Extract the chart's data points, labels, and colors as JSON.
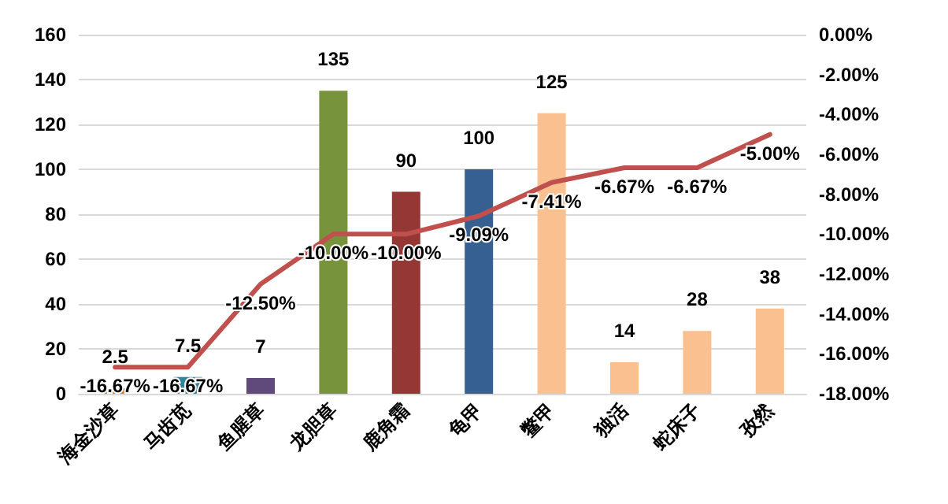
{
  "chart_data": {
    "type": "bar",
    "categories": [
      "海金沙草",
      "马齿苋",
      "鱼腥草",
      "龙胆草",
      "鹿角霜",
      "龟甲",
      "鳖甲",
      "独活",
      "蛇床子",
      "孜然"
    ],
    "series": [
      {
        "colors": [
          "#e46c0a",
          "#31849b",
          "#604a7b",
          "#77933c",
          "#953735",
          "#376092",
          "#fac090",
          "#fac090",
          "#fac090",
          "#fac090"
        ],
        "values": [
          2.5,
          7.5,
          7,
          135,
          90,
          100,
          125,
          14,
          28,
          38
        ],
        "value_labels": [
          "2.5",
          "7.5",
          "7",
          "135",
          "90",
          "100",
          "125",
          "14",
          "28",
          "38"
        ]
      },
      {
        "type": "line",
        "axis": "y2",
        "color": "#c0504d",
        "values": [
          -16.67,
          -16.67,
          -12.5,
          -10,
          -10,
          -9.09,
          -7.41,
          -6.67,
          -6.67,
          -5
        ],
        "value_labels": [
          "-16.67%",
          "-16.67%",
          "-12.50%",
          "-10.00%",
          "-10.00%",
          "-9.09%",
          "-7.41%",
          "-6.67%",
          "-6.67%",
          "-5.00%"
        ]
      }
    ],
    "ylim": [
      0,
      160
    ],
    "yticks": [
      0,
      20,
      40,
      60,
      80,
      100,
      120,
      140,
      160
    ],
    "y2lim": [
      -18,
      0
    ],
    "y2ticks": [
      {
        "value": -18,
        "label": "-18.00%"
      },
      {
        "value": -16,
        "label": "-16.00%"
      },
      {
        "value": -14,
        "label": "-14.00%"
      },
      {
        "value": -12,
        "label": "-12.00%"
      },
      {
        "value": -10,
        "label": "-10.00%"
      },
      {
        "value": -8,
        "label": "-8.00%"
      },
      {
        "value": -6,
        "label": "-6.00%"
      },
      {
        "value": -4,
        "label": "-4.00%"
      },
      {
        "value": -2,
        "label": "-2.00%"
      },
      {
        "value": 0,
        "label": "0.00%"
      }
    ],
    "grid": "y",
    "marker": "none",
    "line_style": "solid"
  }
}
